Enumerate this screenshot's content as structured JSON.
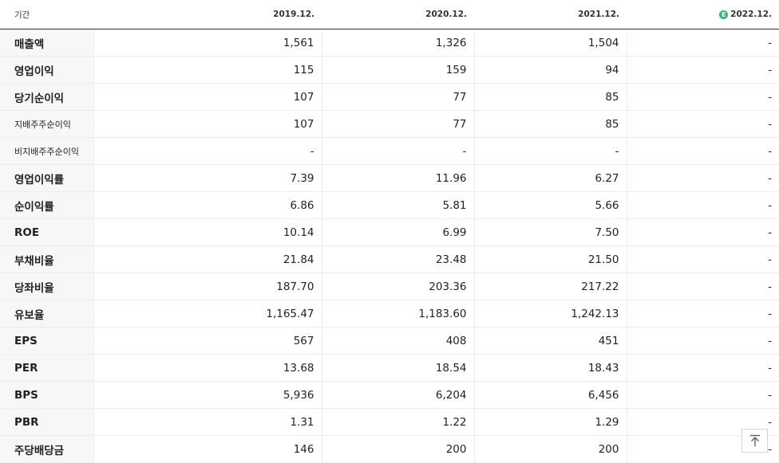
{
  "table": {
    "period_label": "기간",
    "periods": [
      "2019.12.",
      "2020.12.",
      "2021.12.",
      "2022.12."
    ],
    "estimate_badge": "E",
    "rows": [
      {
        "label": "매출액",
        "values": [
          "1,561",
          "1,326",
          "1,504",
          "-"
        ]
      },
      {
        "label": "영업이익",
        "values": [
          "115",
          "159",
          "94",
          "-"
        ]
      },
      {
        "label": "당기순이익",
        "values": [
          "107",
          "77",
          "85",
          "-"
        ]
      },
      {
        "label": "지배주주순이익",
        "values": [
          "107",
          "77",
          "85",
          "-"
        ]
      },
      {
        "label": "비지배주주순이익",
        "values": [
          "-",
          "-",
          "-",
          "-"
        ]
      },
      {
        "label": "영업이익률",
        "values": [
          "7.39",
          "11.96",
          "6.27",
          "-"
        ]
      },
      {
        "label": "순이익률",
        "values": [
          "6.86",
          "5.81",
          "5.66",
          "-"
        ]
      },
      {
        "label": "ROE",
        "values": [
          "10.14",
          "6.99",
          "7.50",
          "-"
        ]
      },
      {
        "label": "부채비율",
        "values": [
          "21.84",
          "23.48",
          "21.50",
          "-"
        ]
      },
      {
        "label": "당좌비율",
        "values": [
          "187.70",
          "203.36",
          "217.22",
          "-"
        ]
      },
      {
        "label": "유보율",
        "values": [
          "1,165.47",
          "1,183.60",
          "1,242.13",
          "-"
        ]
      },
      {
        "label": "EPS",
        "values": [
          "567",
          "408",
          "451",
          "-"
        ]
      },
      {
        "label": "PER",
        "values": [
          "13.68",
          "18.54",
          "18.43",
          "-"
        ]
      },
      {
        "label": "BPS",
        "values": [
          "5,936",
          "6,204",
          "6,456",
          "-"
        ]
      },
      {
        "label": "PBR",
        "values": [
          "1.31",
          "1.22",
          "1.29",
          "-"
        ]
      },
      {
        "label": "주당배당금",
        "values": [
          "146",
          "200",
          "200",
          "-"
        ]
      }
    ]
  },
  "colors": {
    "estimate_badge": "#35b971",
    "label_background": "#f7f7f7"
  },
  "scroll_top_icon": "arrow-up-icon"
}
